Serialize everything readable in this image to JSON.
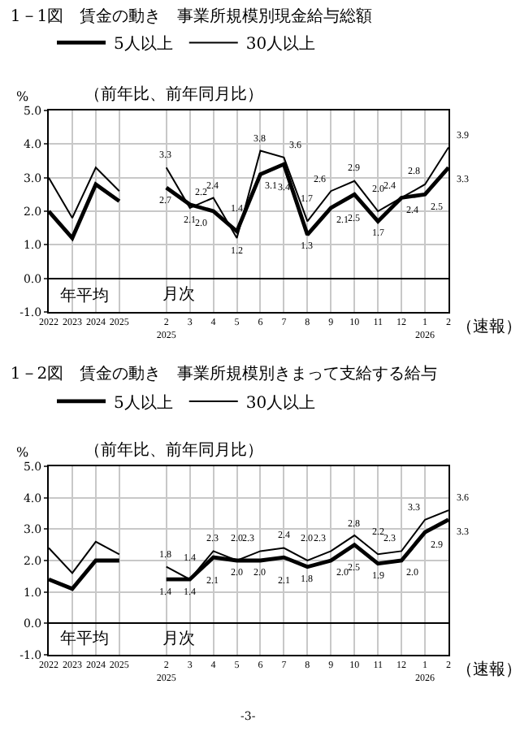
{
  "chart_data": [
    {
      "type": "line",
      "title": "1－1図　賃金の動き　事業所規模別現金給与総額",
      "subtitle": "（前年比、前年同月比）",
      "ylabel": "%",
      "categories": [
        "2022",
        "2023",
        "2024",
        "2025",
        null,
        "2\n2025",
        "3",
        "4",
        "5",
        "6",
        "7",
        "8",
        "9",
        "10",
        "11",
        "12",
        "1\n2026",
        "2"
      ],
      "series": [
        {
          "name": "5人以上",
          "color": "#000000",
          "values": [
            2.0,
            1.2,
            2.8,
            2.3,
            null,
            2.7,
            2.2,
            2.0,
            1.4,
            3.1,
            3.4,
            1.3,
            2.1,
            2.5,
            1.7,
            2.4,
            2.5,
            3.3
          ],
          "value_labels": [
            null,
            null,
            null,
            null,
            null,
            "2.7",
            "2.2",
            "2.0",
            "1.4",
            "3.1",
            "3.4",
            "1.3",
            "2.1",
            "2.5",
            "1.7",
            "2.4",
            "2.5",
            "3.3"
          ]
        },
        {
          "name": "30人以上",
          "color": "#000000",
          "values": [
            3.0,
            1.8,
            3.3,
            2.6,
            null,
            3.3,
            2.1,
            2.4,
            1.2,
            3.8,
            3.6,
            1.7,
            2.6,
            2.9,
            2.0,
            2.4,
            2.8,
            3.9
          ],
          "value_labels": [
            null,
            null,
            null,
            null,
            null,
            "3.3",
            "2.1",
            "2.4",
            "1.2",
            "3.8",
            "3.6",
            "1.7",
            "2.6",
            "2.9",
            "2.0",
            "2.4",
            "2.8",
            "3.9"
          ]
        }
      ],
      "ylim": [
        -1,
        5
      ],
      "yticks": [
        {
          "value": -1,
          "label": "-1.0"
        },
        {
          "value": 0,
          "label": "0.0"
        },
        {
          "value": 1,
          "label": "1.0"
        },
        {
          "value": 2,
          "label": "2.0"
        },
        {
          "value": 3,
          "label": "3.0"
        },
        {
          "value": 4,
          "label": "4.0"
        },
        {
          "value": 5,
          "label": "5.0"
        }
      ],
      "grid": true,
      "legend": "top left",
      "marker": "none",
      "line_style": "solid",
      "annotations": [
        "年平均",
        "月次",
        "（速報）"
      ]
    },
    {
      "type": "line",
      "title": "1－2図　賃金の動き　事業所規模別きまって支給する給与",
      "subtitle": "（前年比、前年同月比）",
      "ylabel": "%",
      "categories": [
        "2022",
        "2023",
        "2024",
        "2025",
        null,
        "2\n2025",
        "3",
        "4",
        "5",
        "6",
        "7",
        "8",
        "9",
        "10",
        "11",
        "12",
        "1\n2026",
        "2"
      ],
      "series": [
        {
          "name": "5人以上",
          "color": "#000000",
          "values": [
            1.4,
            1.1,
            2.0,
            2.0,
            null,
            1.4,
            1.4,
            2.1,
            2.0,
            2.0,
            2.1,
            1.8,
            2.0,
            2.5,
            1.9,
            2.0,
            2.9,
            3.3
          ],
          "value_labels": [
            null,
            null,
            null,
            null,
            null,
            "1.4",
            "1.4",
            "2.1",
            "2.0",
            "2.0",
            "2.1",
            "1.8",
            "2.0",
            "2.5",
            "1.9",
            "2.0",
            "2.9",
            "3.3"
          ]
        },
        {
          "name": "30人以上",
          "color": "#000000",
          "values": [
            2.4,
            1.6,
            2.6,
            2.2,
            null,
            1.8,
            1.4,
            2.3,
            2.0,
            2.3,
            2.4,
            2.0,
            2.3,
            2.8,
            2.2,
            2.3,
            3.3,
            3.6
          ],
          "value_labels": [
            null,
            null,
            null,
            null,
            null,
            "1.8",
            "1.4",
            "2.3",
            "2.0",
            "2.3",
            "2.4",
            "2.0",
            "2.3",
            "2.8",
            "2.2",
            "2.3",
            "3.3",
            "3.6"
          ]
        }
      ],
      "ylim": [
        -1,
        5
      ],
      "yticks": [
        {
          "value": -1,
          "label": "-1.0"
        },
        {
          "value": 0,
          "label": "0.0"
        },
        {
          "value": 1,
          "label": "1.0"
        },
        {
          "value": 2,
          "label": "2.0"
        },
        {
          "value": 3,
          "label": "3.0"
        },
        {
          "value": 4,
          "label": "4.0"
        },
        {
          "value": 5,
          "label": "5.0"
        }
      ],
      "grid": true,
      "legend": "top left",
      "marker": "none",
      "line_style": "solid",
      "annotations": [
        "年平均",
        "月次",
        "（速報）",
        "-3-"
      ]
    }
  ]
}
